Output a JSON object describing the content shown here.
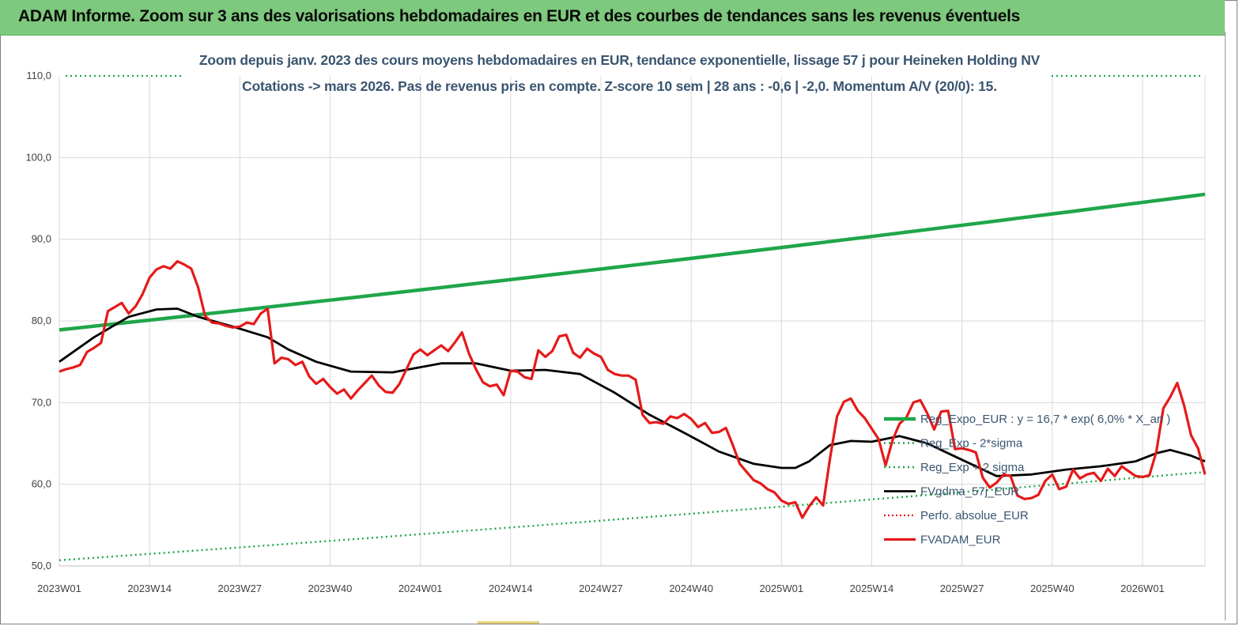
{
  "banner": {
    "title": "ADAM Informe. Zoom sur 3 ans des valorisations hebdomadaires en EUR et des courbes de tendances sans les revenus éventuels"
  },
  "colors": {
    "banner_bg": "#7dc97d",
    "reg_expo": "#1fa64a",
    "sigma_lines": "#1fa64a",
    "fvgdma": "#000000",
    "perfo": "#e0201b",
    "fvadam": "#e51a1a",
    "subtitle": "#3a5570",
    "grid": "#d9d9d9"
  },
  "chart_data": {
    "type": "line",
    "title": "Zoom depuis janv. 2023 des cours moyens hebdomadaires en EUR, tendance exponentielle, lissage 57 j pour Heineken Holding NV",
    "subtitle": "Cotations -> mars 2026. Pas de revenus pris en compte. Z-score 10 sem | 28 ans : -0,6 | -2,0. Momentum A/V (20/0): 15.",
    "xlabel": "",
    "ylabel": "",
    "ylim": [
      50,
      110
    ],
    "y_ticks": [
      "50,0",
      "60,0",
      "70,0",
      "80,0",
      "90,0",
      "100,0",
      "110,0"
    ],
    "y_tick_values": [
      50,
      60,
      70,
      80,
      90,
      100,
      110
    ],
    "x_range_weeks": [
      0,
      165
    ],
    "x_ticks": [
      "2023W01",
      "2023W14",
      "2023W27",
      "2023W40",
      "2024W01",
      "2024W14",
      "2024W27",
      "2024W40",
      "2025W01",
      "2025W14",
      "2025W27",
      "2025W40",
      "2026W01"
    ],
    "x_tick_weeks": [
      0,
      13,
      26,
      39,
      52,
      65,
      78,
      91,
      104,
      117,
      130,
      143,
      156
    ],
    "grid": true,
    "legend_position": "bottom-right",
    "series": [
      {
        "name": "Reg_Expo_EUR : y = 16,7 * exp( 6,0% * X_an )",
        "style": "solid-thick",
        "x": [
          0,
          165
        ],
        "values": [
          78.9,
          95.5
        ],
        "curve": "exponential"
      },
      {
        "name": "Reg_Exp - 2*sigma",
        "style": "dotted",
        "x": [
          0,
          165
        ],
        "values": [
          50.7,
          61.5
        ],
        "curve": "exponential"
      },
      {
        "name": "Reg_Exp + 2 sigma",
        "style": "dotted",
        "x": [
          0,
          165
        ],
        "values": [
          110.0,
          110.0
        ],
        "note": "visible only at the chart edges at 110,0"
      },
      {
        "name": "FVgdma_57j_EUR",
        "style": "solid",
        "x": [
          0,
          5,
          10,
          14,
          17,
          20,
          25,
          30,
          33,
          37,
          42,
          48,
          55,
          60,
          65,
          70,
          75,
          80,
          85,
          90,
          95,
          100,
          104,
          106,
          108,
          111,
          114,
          117,
          121,
          125,
          130,
          135,
          140,
          145,
          150,
          155,
          158,
          160,
          163,
          165
        ],
        "values": [
          75.0,
          78.0,
          80.5,
          81.4,
          81.5,
          80.5,
          79.3,
          78.0,
          76.5,
          75.0,
          73.8,
          73.7,
          74.8,
          74.8,
          73.9,
          74.0,
          73.5,
          71.2,
          68.5,
          66.3,
          64.0,
          62.5,
          62.0,
          62.0,
          62.8,
          64.8,
          65.3,
          65.2,
          65.9,
          65.0,
          63.0,
          61.0,
          61.2,
          61.8,
          62.2,
          62.8,
          63.8,
          64.2,
          63.5,
          62.8
        ]
      },
      {
        "name": "Perfo. absolue_EUR",
        "style": "dotted",
        "x": [],
        "values": []
      },
      {
        "name": "FVADAM_EUR",
        "style": "solid-thick",
        "x": [
          0,
          1,
          2,
          3,
          4,
          5,
          6,
          7,
          8,
          9,
          10,
          11,
          12,
          13,
          14,
          15,
          16,
          17,
          18,
          19,
          20,
          21,
          22,
          23,
          24,
          25,
          26,
          27,
          28,
          29,
          30,
          31,
          32,
          33,
          34,
          35,
          36,
          37,
          38,
          39,
          40,
          41,
          42,
          43,
          44,
          45,
          46,
          47,
          48,
          49,
          50,
          51,
          52,
          53,
          54,
          55,
          56,
          57,
          58,
          59,
          60,
          61,
          62,
          63,
          64,
          65,
          66,
          67,
          68,
          69,
          70,
          71,
          72,
          73,
          74,
          75,
          76,
          77,
          78,
          79,
          80,
          81,
          82,
          83,
          84,
          85,
          86,
          87,
          88,
          89,
          90,
          91,
          92,
          93,
          94,
          95,
          96,
          97,
          98,
          99,
          100,
          101,
          102,
          103,
          104,
          105,
          106,
          107,
          108,
          109,
          110,
          111,
          112,
          113,
          114,
          115,
          116,
          117,
          118,
          119,
          120,
          121,
          122,
          123,
          124,
          125,
          126,
          127,
          128,
          129,
          130,
          131,
          132,
          133,
          134,
          135,
          136,
          137,
          138,
          139,
          140,
          141,
          142,
          143,
          144,
          145,
          146,
          147,
          148,
          149,
          150,
          151,
          152,
          153,
          154,
          155,
          156,
          157,
          158,
          159,
          160,
          161,
          162,
          163,
          164,
          165
        ],
        "values": [
          73.8,
          74.1,
          74.3,
          74.6,
          76.2,
          76.7,
          77.3,
          81.2,
          81.7,
          82.2,
          80.9,
          81.8,
          83.3,
          85.3,
          86.3,
          86.7,
          86.4,
          87.3,
          86.9,
          86.4,
          84.1,
          80.6,
          79.8,
          79.7,
          79.4,
          79.2,
          79.3,
          79.8,
          79.6,
          80.9,
          81.5,
          74.8,
          75.5,
          75.3,
          74.6,
          75.0,
          73.2,
          72.3,
          72.9,
          71.9,
          71.1,
          71.6,
          70.5,
          71.5,
          72.4,
          73.3,
          72.1,
          71.3,
          71.2,
          72.3,
          74.1,
          75.9,
          76.5,
          75.8,
          76.4,
          77.0,
          76.3,
          77.4,
          78.6,
          76.0,
          74.1,
          72.5,
          72.0,
          72.2,
          70.9,
          73.9,
          73.8,
          73.1,
          72.9,
          76.4,
          75.6,
          76.3,
          78.1,
          78.3,
          76.1,
          75.5,
          76.6,
          76.0,
          75.6,
          74.0,
          73.5,
          73.3,
          73.3,
          72.8,
          68.5,
          67.5,
          67.6,
          67.4,
          68.3,
          68.1,
          68.6,
          68.0,
          67.0,
          67.5,
          66.3,
          66.4,
          66.9,
          64.8,
          62.5,
          61.5,
          60.5,
          60.1,
          59.4,
          59.0,
          58.0,
          57.6,
          57.8,
          55.9,
          57.3,
          58.4,
          57.4,
          63.2,
          68.3,
          70.1,
          70.5,
          69.0,
          68.1,
          66.8,
          65.5,
          62.3,
          65.4,
          67.4,
          68.2,
          70.0,
          70.3,
          68.7,
          66.7,
          68.9,
          69.0,
          64.3,
          64.4,
          64.2,
          63.9,
          60.8,
          59.6,
          60.2,
          61.2,
          61.0,
          58.6,
          58.2,
          58.3,
          58.7,
          60.4,
          61.2,
          59.4,
          59.7,
          61.8,
          60.7,
          61.2,
          61.4,
          60.4,
          61.9,
          61.0,
          62.2,
          61.6,
          61.0,
          60.9,
          61.1,
          64.0,
          69.3,
          70.7,
          72.4,
          69.6,
          66.0,
          64.4,
          61.2
        ]
      }
    ]
  }
}
